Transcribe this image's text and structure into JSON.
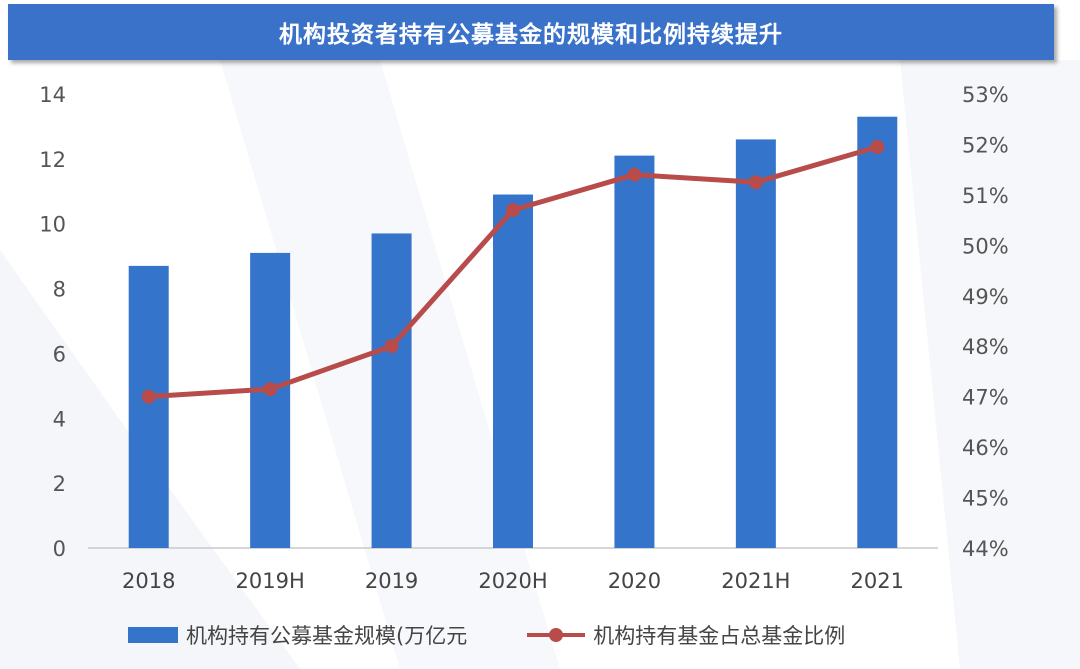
{
  "chart_data": {
    "type": "bar+line",
    "title": "机构投资者持有公募基金的规模和比例持续提升",
    "categories": [
      "2018",
      "2019H",
      "2019",
      "2020H",
      "2020",
      "2021H",
      "2021"
    ],
    "series": [
      {
        "name": "机构持有公募基金规模(万亿元",
        "type": "bar",
        "axis": "left",
        "color": "#3574cb",
        "values": [
          8.7,
          9.1,
          9.7,
          10.9,
          12.1,
          12.6,
          13.3
        ]
      },
      {
        "name": "机构持有基金占总基金比例",
        "type": "line",
        "axis": "right",
        "color": "#b84c4b",
        "values": [
          47.0,
          47.15,
          48.0,
          50.7,
          51.4,
          51.25,
          51.95
        ]
      }
    ],
    "y_left": {
      "min": 0,
      "max": 14,
      "ticks": [
        "0",
        "2",
        "4",
        "6",
        "8",
        "10",
        "12",
        "14"
      ]
    },
    "y_right": {
      "min": 44,
      "max": 53,
      "ticks": [
        "44%",
        "45%",
        "46%",
        "47%",
        "48%",
        "49%",
        "50%",
        "51%",
        "52%",
        "53%"
      ]
    },
    "legend_position": "bottom"
  }
}
